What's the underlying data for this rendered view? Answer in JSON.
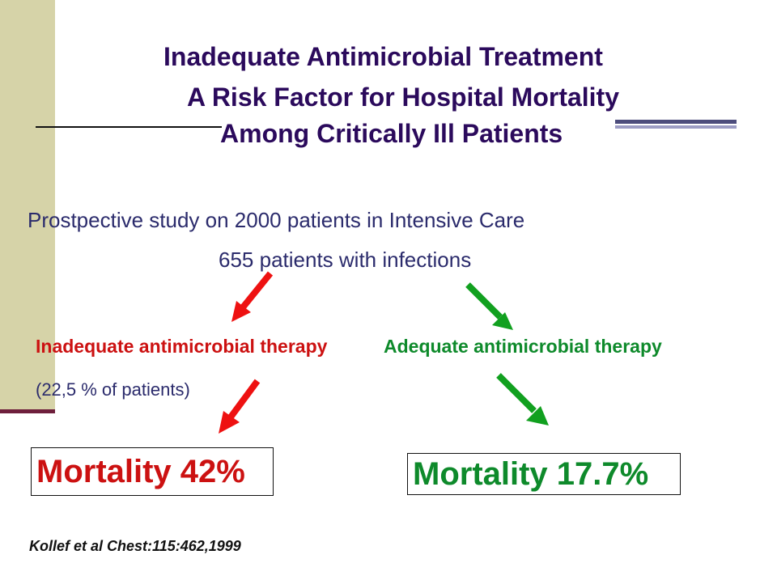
{
  "title": {
    "line1": "Inadequate Antimicrobial Treatment",
    "line2": "A Risk Factor for Hospital Mortality",
    "line3": "Among Critically Ill Patients"
  },
  "study": {
    "description": "Prostpective study on 2000 patients in Intensive Care",
    "subgroup": "655 patients with infections"
  },
  "branches": {
    "inadequate": {
      "label": "Inadequate antimicrobial therapy",
      "share": "(22,5 % of patients)",
      "mortality": "Mortality 42%"
    },
    "adequate": {
      "label": "Adequate antimicrobial therapy",
      "mortality": "Mortality 17.7%"
    }
  },
  "citation": "Kollef et al Chest:115:462,1999",
  "colors": {
    "title": "#2b0a5c",
    "body_text": "#2b2b6c",
    "inadequate": "#cc1111",
    "adequate": "#0e8a2b",
    "side_bar": "#d6d3a8",
    "accent_rule": "#6e1f3c"
  }
}
